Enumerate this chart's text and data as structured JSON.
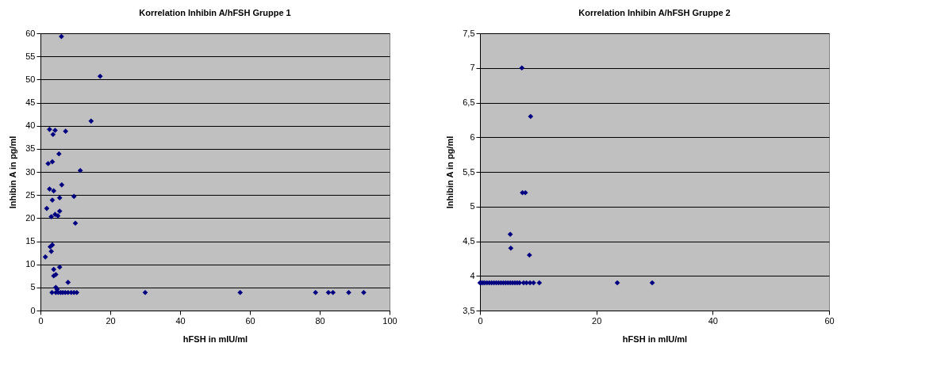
{
  "chart_data": [
    {
      "type": "scatter",
      "title": "Korrelation Inhibin A/hFSH Gruppe 1",
      "xlabel": "hFSH in mIU/ml",
      "ylabel": "Inhibin A in pg/ml",
      "marker": "diamond",
      "grid": "y",
      "xlim": [
        0,
        100
      ],
      "xticks": [
        0,
        20,
        40,
        60,
        80,
        100
      ],
      "ylim": [
        0,
        60
      ],
      "yticks": [
        0,
        5,
        10,
        15,
        20,
        25,
        30,
        35,
        40,
        45,
        50,
        55,
        60
      ],
      "series": [
        {
          "color": "#000080",
          "x": [
            6.0,
            17.1,
            14.5,
            2.6,
            4.2,
            3.6,
            7.2,
            5.3,
            2.2,
            3.4,
            11.4,
            2.6,
            3.8,
            6.1,
            3.4,
            5.5,
            9.6,
            1.8,
            5.5,
            3.1,
            4.2,
            5.0,
            10.0,
            2.8,
            3.4,
            3.1,
            1.4,
            3.8,
            5.5,
            3.8,
            4.4,
            7.9,
            4.4,
            4.8,
            3.3,
            4.4,
            5.1,
            5.8,
            6.4,
            7.1,
            7.9,
            8.8,
            9.6,
            10.4,
            30.0,
            57.2,
            78.8,
            82.5,
            83.8,
            88.3,
            92.6
          ],
          "values": [
            59.3,
            50.7,
            41.0,
            39.2,
            39.0,
            38.1,
            38.8,
            33.9,
            31.8,
            32.2,
            30.3,
            26.3,
            25.9,
            27.2,
            23.9,
            24.4,
            24.7,
            22.1,
            21.5,
            20.3,
            20.8,
            20.5,
            18.9,
            13.8,
            14.2,
            12.8,
            11.6,
            8.9,
            9.4,
            7.5,
            7.8,
            6.1,
            5.0,
            4.6,
            3.9,
            3.9,
            3.9,
            3.9,
            3.9,
            3.9,
            3.9,
            3.9,
            3.9,
            3.9,
            3.9,
            3.9,
            3.9,
            3.9,
            3.9,
            3.9,
            3.9
          ]
        }
      ]
    },
    {
      "type": "scatter",
      "title": "Korrelation Inhibin A/hFSH Gruppe 2",
      "xlabel": "hFSH in mIU/ml",
      "ylabel": "Inhibin A in pg/ml",
      "marker": "diamond",
      "grid": "y",
      "xlim": [
        0,
        60
      ],
      "xticks": [
        0,
        20,
        40,
        60
      ],
      "ylim": [
        3.5,
        7.5
      ],
      "yticks": [
        {
          "value": 3.5,
          "label": "3,5"
        },
        4,
        {
          "value": 4.5,
          "label": "4,5"
        },
        5,
        {
          "value": 5.5,
          "label": "5,5"
        },
        6,
        {
          "value": 6.5,
          "label": "6,5"
        },
        7,
        {
          "value": 7.5,
          "label": "7,5"
        }
      ],
      "series": [
        {
          "color": "#000080",
          "x": [
            7.2,
            8.7,
            7.3,
            7.8,
            5.2,
            5.3,
            8.5,
            0.0,
            0.2,
            0.5,
            0.8,
            1.2,
            1.6,
            2.0,
            2.4,
            2.8,
            3.2,
            3.6,
            4.0,
            4.4,
            4.8,
            5.2,
            5.6,
            6.0,
            6.4,
            6.8,
            7.5,
            8.0,
            8.6,
            9.2,
            10.2,
            23.6,
            29.6
          ],
          "values": [
            7.0,
            6.3,
            5.2,
            5.2,
            4.6,
            4.4,
            4.3,
            3.9,
            3.9,
            3.9,
            3.9,
            3.9,
            3.9,
            3.9,
            3.9,
            3.9,
            3.9,
            3.9,
            3.9,
            3.9,
            3.9,
            3.9,
            3.9,
            3.9,
            3.9,
            3.9,
            3.9,
            3.9,
            3.9,
            3.9,
            3.9,
            3.9,
            3.9
          ]
        }
      ]
    }
  ]
}
